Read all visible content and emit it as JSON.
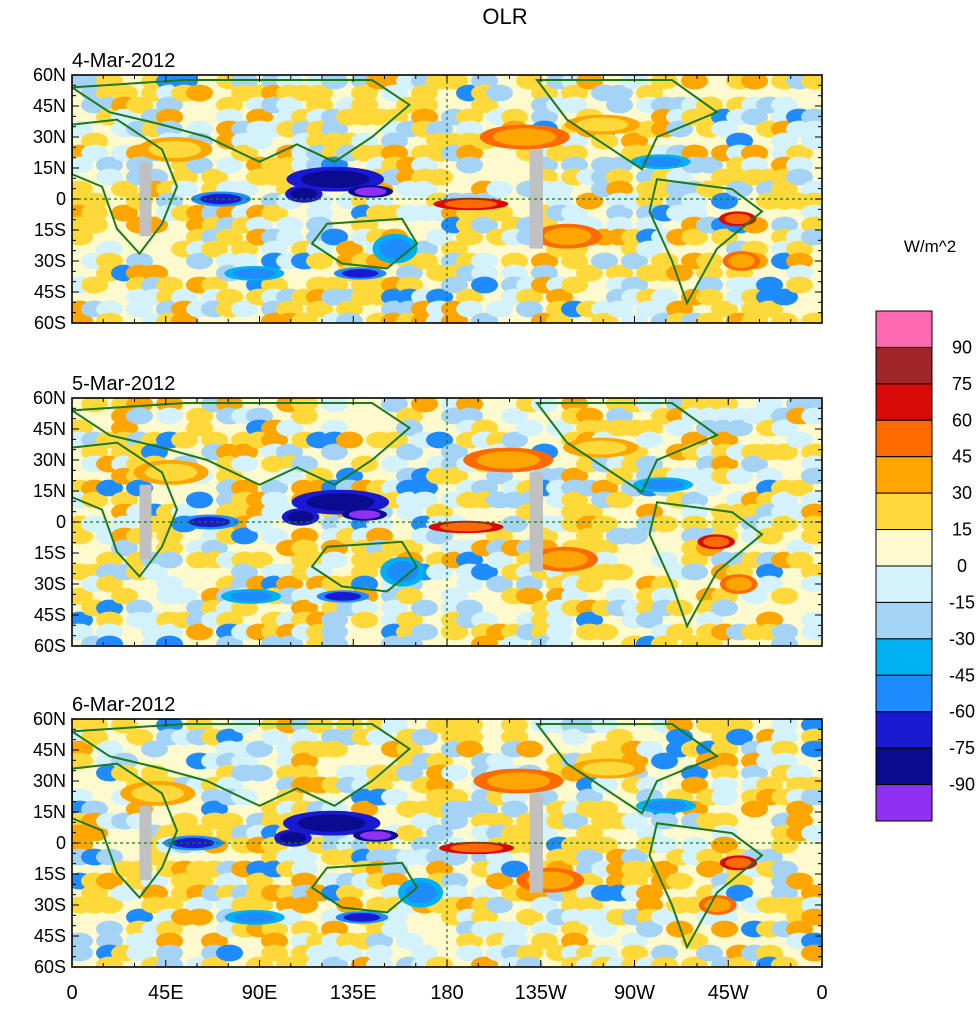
{
  "title": "OLR",
  "panels": [
    {
      "date": "4-Mar-2012"
    },
    {
      "date": "5-Mar-2012"
    },
    {
      "date": "6-Mar-2012"
    }
  ],
  "lat_labels": [
    "60N",
    "45N",
    "30N",
    "15N",
    "0",
    "15S",
    "30S",
    "45S",
    "60S"
  ],
  "lon_labels": [
    "0",
    "45E",
    "90E",
    "135E",
    "180",
    "135W",
    "90W",
    "45W",
    "0"
  ],
  "colorbar": {
    "units": "W/m^2",
    "levels": [
      "90",
      "75",
      "60",
      "45",
      "30",
      "15",
      "0",
      "-15",
      "-30",
      "-45",
      "-60",
      "-75",
      "-90"
    ],
    "colors": [
      "#ff69b4",
      "#a0252a",
      "#d90a0a",
      "#ff6a00",
      "#ffa500",
      "#ffd93a",
      "#fffacd",
      "#d4f2fb",
      "#a5d3f5",
      "#00b0f0",
      "#1e8cff",
      "#1919d0",
      "#0b0b90",
      "#9030f0"
    ]
  },
  "palette": {
    "land_outline": "#1a7a1a",
    "missing": "#c0c0c0",
    "frame": "#000000"
  }
}
